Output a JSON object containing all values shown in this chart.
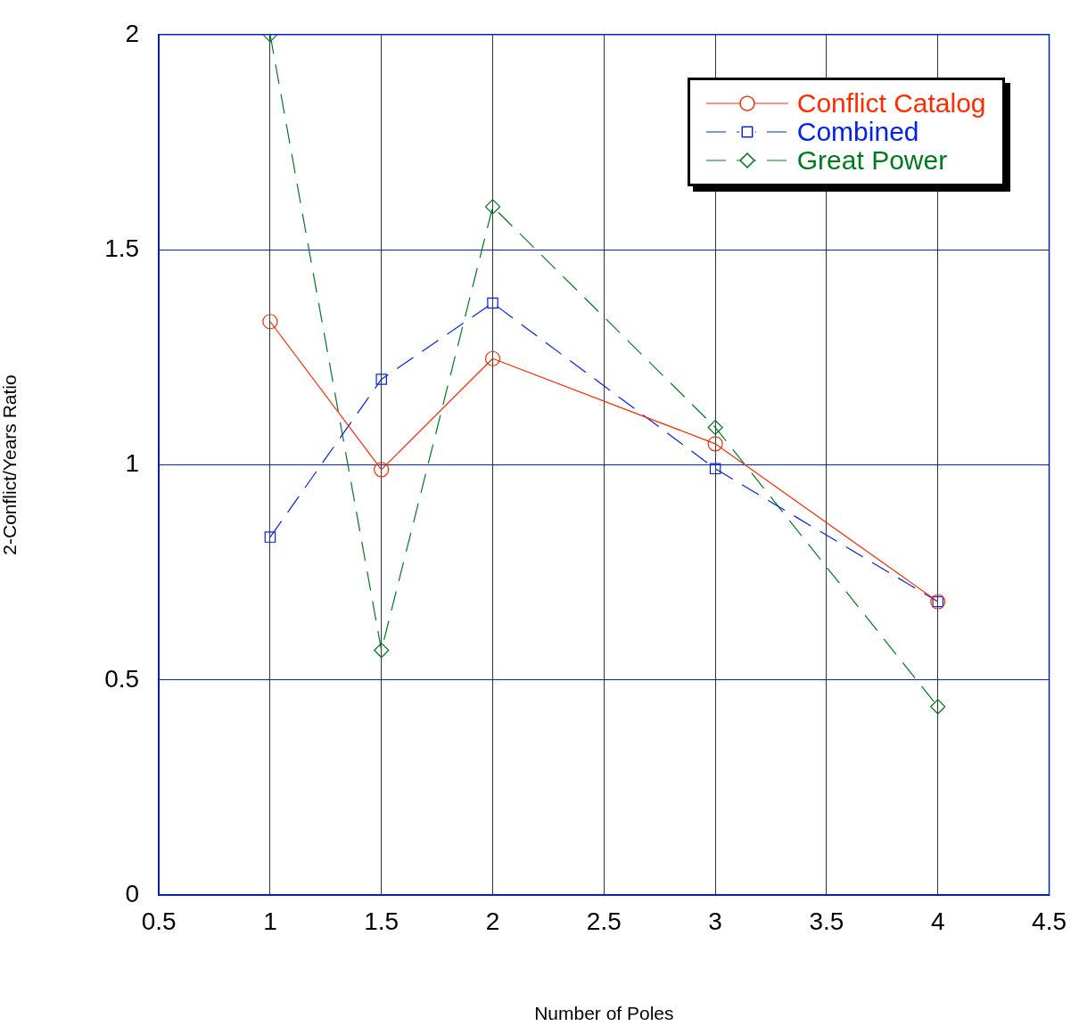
{
  "chart_data": {
    "type": "line",
    "xlabel": "Number of Poles",
    "ylabel": "2-Conflict/Years Ratio",
    "x": [
      1,
      1.5,
      2,
      3,
      4
    ],
    "series": [
      {
        "name": "Conflict Catalog",
        "color": "#ff2a00",
        "values": [
          1.333,
          0.989,
          1.247,
          1.049,
          0.682
        ],
        "marker": "circle",
        "line_style": "solid"
      },
      {
        "name": "Combined",
        "color": "#0022ee",
        "values": [
          0.832,
          1.199,
          1.376,
          0.991,
          0.682
        ],
        "marker": "square",
        "line_style": "dashed"
      },
      {
        "name": "Great Power",
        "color": "#007a1e",
        "values": [
          2.0,
          0.569,
          1.6,
          1.087,
          0.438
        ],
        "marker": "diamond",
        "line_style": "dashed"
      }
    ],
    "xlim": [
      0.5,
      4.5
    ],
    "xticks": [
      0.5,
      1,
      1.5,
      2,
      2.5,
      3,
      3.5,
      4,
      4.5
    ],
    "ylim": [
      0,
      2
    ],
    "yticks": [
      0,
      0.5,
      1,
      1.5,
      2
    ],
    "grid": true,
    "legend": "top right"
  }
}
